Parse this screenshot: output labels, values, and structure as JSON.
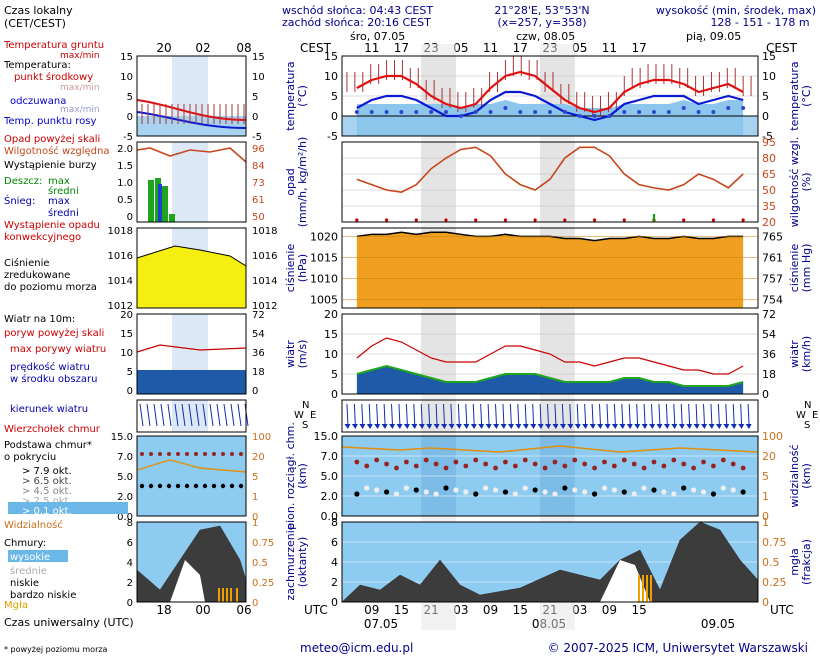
{
  "header": {
    "sunrise": "wschód słońca: 04:43 CEST",
    "sunset": "zachód słońca: 20:16 CEST",
    "coords": "21°28'E, 53°53'N",
    "grid": "(x=257,  y=358)",
    "elev_title": "wysokość (min, środek, max)",
    "elev_values": "128 - 151 - 178 m"
  },
  "days": {
    "d1": "śro, 07.05",
    "d2": "czw, 08.05",
    "d3": "pią, 09.05",
    "b1": "07.05",
    "b2": "08.05",
    "b3": "09.05"
  },
  "tz": {
    "cest": "CEST",
    "utc": "UTC"
  },
  "left_panel": {
    "local_time": "Czas lokalny",
    "local_time2": "(CET/CEST)",
    "local_ticks": [
      "20",
      "02",
      "08"
    ],
    "utc_label": "Czas uniwersalny (UTC)",
    "utc_ticks": [
      "18",
      "00",
      "06"
    ],
    "soil_temp": "Temperatura gruntu",
    "soil_sub": "max/min",
    "temp": "Temperatura:",
    "temp_mid": "punkt środkowy",
    "temp_minmax": "max/min",
    "feel": "odczuwana",
    "feel_minmax": "max/min",
    "dew": "Temp. punktu rosy",
    "rain_above": "Opad powyżej skali",
    "humidity": "Wilgotność względna",
    "storm": "Wystąpienie burzy",
    "rain": "Deszcz:",
    "rain_max": "max",
    "rain_mean": "średni",
    "snow": "Śnieg:",
    "snow_max": "max",
    "snow_mean": "średni",
    "conv": "Wystąpienie opadu",
    "conv2": "konwekcyjnego",
    "pressure": "Ciśnienie",
    "pressure2": "zredukowane",
    "pressure3": "do poziomu morza",
    "wind10": "Wiatr na 10m:",
    "gust_above": "poryw powyżej skali",
    "gust_max": "max porywy wiatru",
    "wind_speed": "prędkość wiatru",
    "wind_speed2": "w środku obszaru",
    "wind_dir": "kierunek wiatru",
    "cloud_top": "Wierzchołek chmur",
    "cloud_base": "Podstawa chmur*",
    "cloud_base2": "o pokryciu",
    "okt": [
      "> 7.9 okt.",
      "> 6.5 okt.",
      "> 4.5 okt.",
      "> 2.5 okt.",
      "> 0.1 okt."
    ],
    "visibility": "Widzialność",
    "clouds": "Chmury:",
    "high": "wysokie",
    "mid": "średnie",
    "low": "niskie",
    "vlow": "bardzo niskie",
    "fog": "Mgła",
    "footnote": "* powyżej poziomu morza"
  },
  "axis_titles": {
    "temp_l": "temperatura",
    "temp_l2": "(°C)",
    "temp_r": "temperatura",
    "temp_r2": "(°C)",
    "rain_l": "opad",
    "rain_l2": "(mm/h, kg/m²/h)",
    "rain_r": "wilgotność wzgl.",
    "rain_r2": "(%)",
    "press_l": "ciśnienie",
    "press_l2": "(hPa)",
    "press_r": "ciśnienie",
    "press_r2": "(mm Hg)",
    "wind_l": "wiatr",
    "wind_l2": "(m/s)",
    "wind_r": "wiatr",
    "wind_r2": "(km/h)",
    "cl_l": "pion. rozciągł. chm.",
    "cl_l2": "(km)",
    "cl_r": "widzialność",
    "cl_r2": "(km)",
    "cov_l": "zachmurzenie",
    "cov_l2": "(oktanty)",
    "cov_r": "mgła",
    "cov_r2": "(frakcja)"
  },
  "footer": {
    "email": "meteo@icm.edu.pl",
    "copyright": "© 2007-2025 ICM, Uniwersytet Warszawski"
  },
  "chart_data": {
    "type": "line",
    "x_utc_hours": [
      6,
      9,
      12,
      15,
      18,
      21,
      24,
      27,
      30,
      33,
      36,
      39,
      42,
      45,
      48,
      51,
      54,
      57,
      60,
      63,
      66,
      69,
      72,
      75,
      78,
      81,
      84
    ],
    "top_ticks_local": [
      "11",
      "17",
      "23",
      "05",
      "11",
      "17",
      "23",
      "05",
      "11",
      "17"
    ],
    "bottom_ticks_utc": [
      "09",
      "15",
      "21",
      "03",
      "09",
      "15",
      "21",
      "03",
      "09",
      "15"
    ],
    "temperature": {
      "ylim": [
        -5,
        15
      ],
      "ticks": [
        "15",
        "10",
        "5",
        "0",
        "-5"
      ],
      "mid": [
        7,
        9,
        10,
        10,
        8,
        5,
        3,
        2,
        3,
        7,
        10,
        11,
        10,
        7,
        4,
        2,
        1,
        2,
        6,
        8,
        9,
        9,
        8,
        6,
        7,
        8,
        6
      ],
      "feel": [
        2,
        4,
        5,
        5,
        4,
        2,
        0,
        0,
        1,
        4,
        6,
        6,
        5,
        3,
        1,
        0,
        -1,
        0,
        3,
        4,
        5,
        5,
        5,
        3,
        4,
        5,
        4
      ],
      "dew": [
        1,
        1,
        1,
        1,
        1,
        1,
        1,
        0,
        1,
        1,
        2,
        1,
        1,
        1,
        1,
        0,
        0,
        0,
        1,
        1,
        1,
        1,
        2,
        1,
        1,
        2,
        2
      ]
    },
    "precip_humidity": {
      "humidity_ylim": [
        20,
        95
      ],
      "humidity_ticks": [
        "95",
        "80",
        "65",
        "50",
        "35",
        "20"
      ],
      "humidity": [
        60,
        55,
        50,
        48,
        55,
        70,
        80,
        88,
        90,
        82,
        65,
        55,
        50,
        60,
        80,
        90,
        90,
        82,
        65,
        55,
        52,
        50,
        55,
        65,
        60,
        52,
        65
      ]
    },
    "pressure": {
      "hpa_ticks": [
        "1020",
        "1015",
        "1010",
        "1005"
      ],
      "mmhg_ticks": [
        "765",
        "761",
        "757",
        "754"
      ],
      "ylim": [
        1003,
        1022
      ],
      "values": [
        1020,
        1020.5,
        1020.5,
        1021,
        1020.5,
        1021,
        1021,
        1020.5,
        1020,
        1020,
        1020.5,
        1020,
        1020,
        1020,
        1019.5,
        1019.5,
        1019,
        1019.5,
        1019.5,
        1020,
        1019.5,
        1019.5,
        1020,
        1019.5,
        1019.5,
        1020,
        1020
      ]
    },
    "wind": {
      "ms_ticks": [
        "20",
        "15",
        "10",
        "5",
        "0"
      ],
      "kmh_ticks": [
        "72",
        "54",
        "36",
        "18",
        "0"
      ],
      "ylim": [
        0,
        20
      ],
      "speed": [
        5,
        6,
        7,
        6,
        5,
        4,
        3,
        3,
        3,
        4,
        5,
        5,
        5,
        4,
        3,
        3,
        3,
        3,
        4,
        4,
        3,
        3,
        2,
        2,
        2,
        2,
        3
      ],
      "gust": [
        9,
        12,
        14,
        13,
        11,
        9,
        8,
        8,
        8,
        10,
        12,
        12,
        11,
        10,
        8,
        8,
        7,
        8,
        9,
        9,
        8,
        7,
        6,
        6,
        5,
        5,
        7
      ]
    },
    "clouds": {
      "km_ticks": [
        "15.0",
        "7.0",
        "5.0",
        "2.0",
        "0.0"
      ],
      "vis_ticks": [
        "100",
        "20",
        "5",
        "1",
        "0"
      ],
      "cover_ticks": [
        "8",
        "6",
        "4",
        "2",
        "0"
      ],
      "fog_ticks": [
        "1",
        "0.75",
        "0.5",
        "0.25",
        "0"
      ]
    }
  }
}
